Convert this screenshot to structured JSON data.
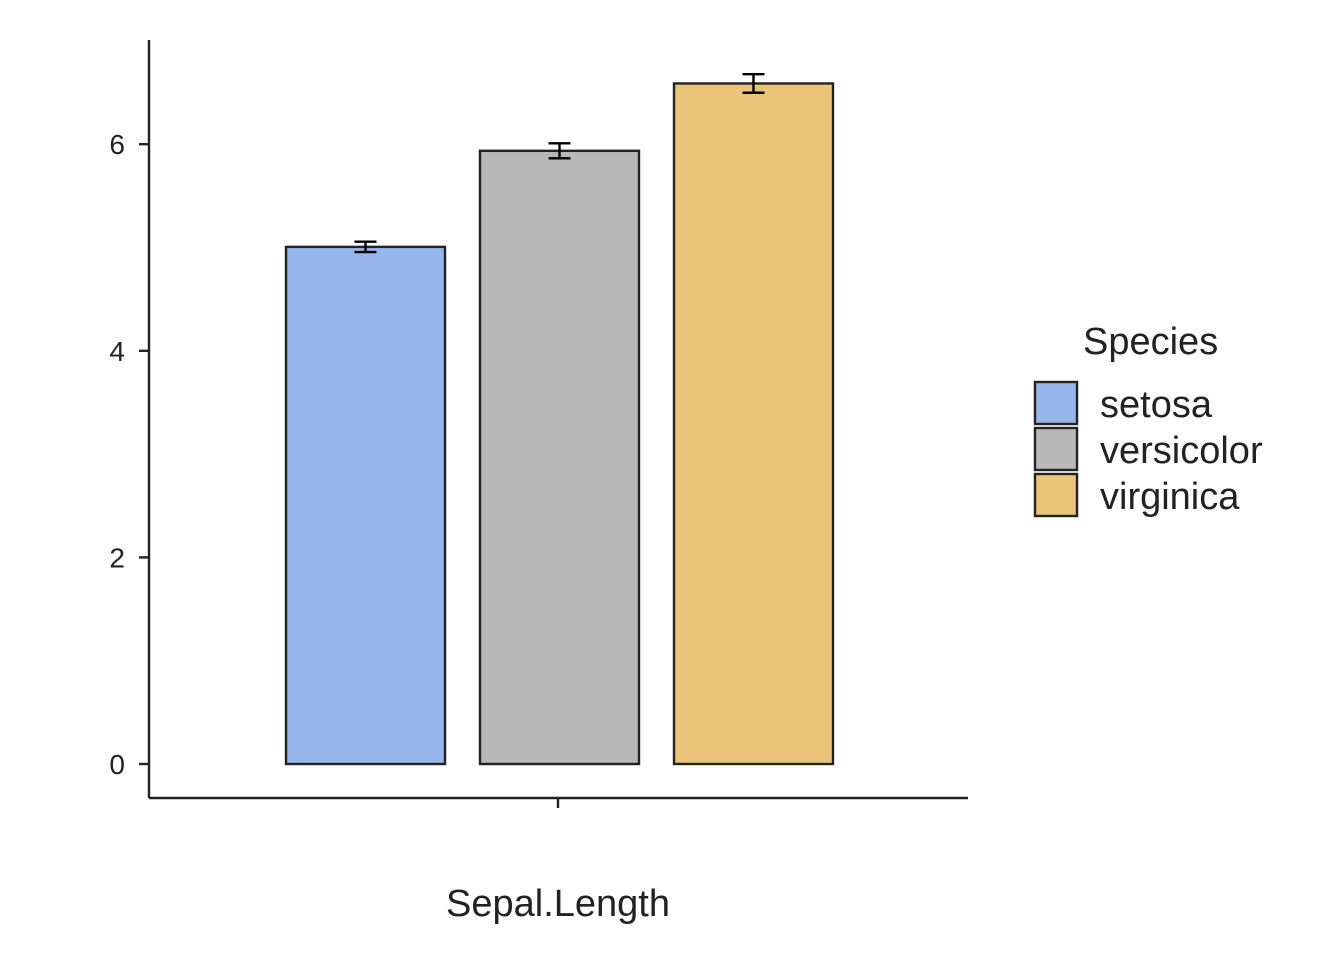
{
  "chart_data": {
    "type": "bar",
    "title": "",
    "xlabel": "Sepal.Length",
    "ylabel": "",
    "x_tick_labels": [
      ""
    ],
    "y_ticks": [
      0,
      2,
      4,
      6
    ],
    "ylim": [
      -0.33,
      7.0
    ],
    "grid": false,
    "series": [
      {
        "name": "setosa",
        "value": 5.006,
        "error": 0.05,
        "color": "#97b6ec"
      },
      {
        "name": "versicolor",
        "value": 5.936,
        "error": 0.073,
        "color": "#b8b8b8"
      },
      {
        "name": "virginica",
        "value": 6.588,
        "error": 0.09,
        "color": "#eac47a"
      }
    ],
    "legend": {
      "title": "Species",
      "position": "right"
    }
  }
}
